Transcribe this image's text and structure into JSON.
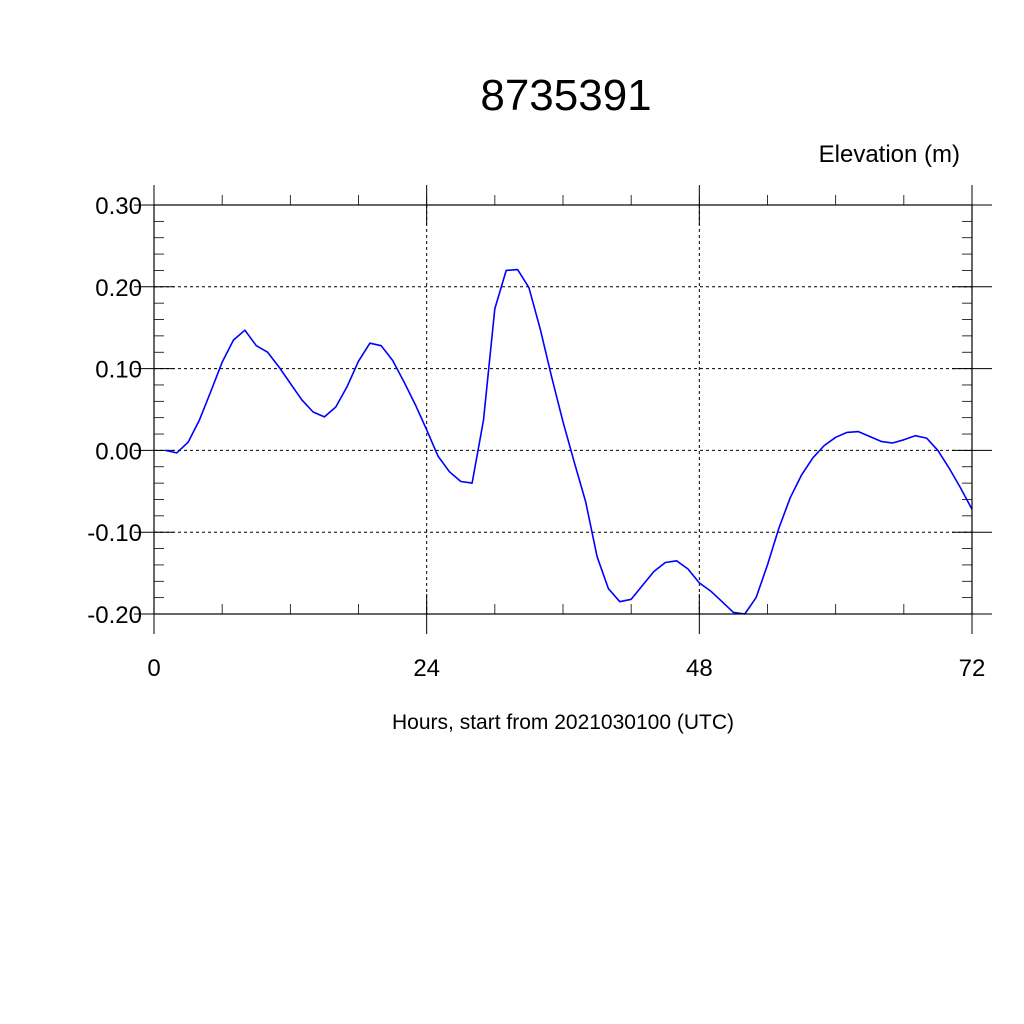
{
  "chart_data": {
    "type": "line",
    "title": "8735391",
    "ylabel": "Elevation (m)",
    "xlabel": "Hours, start from 2021030100 (UTC)",
    "xlim": [
      0,
      72
    ],
    "ylim": [
      -0.2,
      0.3
    ],
    "x_ticks": [
      0,
      24,
      48,
      72
    ],
    "x_tick_labels": [
      "0",
      "24",
      "48",
      "72"
    ],
    "y_ticks": [
      0.3,
      0.2,
      0.1,
      0.0,
      -0.1,
      -0.2
    ],
    "y_tick_labels": [
      "0.30",
      "0.20",
      "0.10",
      "0.00",
      "-0.10",
      "-0.20"
    ],
    "grid": true,
    "line_color": "#0000ff",
    "series": [
      {
        "x": [
          1,
          2,
          3,
          4,
          5,
          6,
          7,
          8,
          9,
          10,
          11,
          12,
          13,
          14,
          15,
          16,
          17,
          18,
          19,
          20,
          21,
          22,
          23,
          24,
          25,
          26,
          27,
          28,
          29,
          30,
          31,
          32,
          33,
          34,
          35,
          36,
          37,
          38,
          39,
          40,
          41,
          42,
          43,
          44,
          45,
          46,
          47,
          48,
          49,
          50,
          51,
          52,
          53,
          54,
          55,
          56,
          57,
          58,
          59,
          60,
          61,
          62,
          63,
          64,
          65,
          66,
          67,
          68,
          69,
          70,
          71,
          72
        ],
        "values": [
          0.0,
          -0.003,
          0.01,
          0.037,
          0.072,
          0.108,
          0.135,
          0.147,
          0.128,
          0.12,
          0.102,
          0.082,
          0.062,
          0.047,
          0.041,
          0.053,
          0.078,
          0.109,
          0.131,
          0.128,
          0.11,
          0.084,
          0.056,
          0.025,
          -0.007,
          -0.026,
          -0.038,
          -0.04,
          0.037,
          0.173,
          0.22,
          0.221,
          0.199,
          0.148,
          0.09,
          0.035,
          -0.015,
          -0.063,
          -0.13,
          -0.169,
          -0.185,
          -0.182,
          -0.165,
          -0.148,
          -0.137,
          -0.135,
          -0.145,
          -0.162,
          -0.172,
          -0.185,
          -0.198,
          -0.2,
          -0.18,
          -0.14,
          -0.095,
          -0.058,
          -0.03,
          -0.009,
          0.006,
          0.016,
          0.022,
          0.023,
          0.017,
          0.011,
          0.009,
          0.013,
          0.018,
          0.015,
          0.0,
          -0.022,
          -0.046,
          -0.072
        ]
      }
    ]
  }
}
